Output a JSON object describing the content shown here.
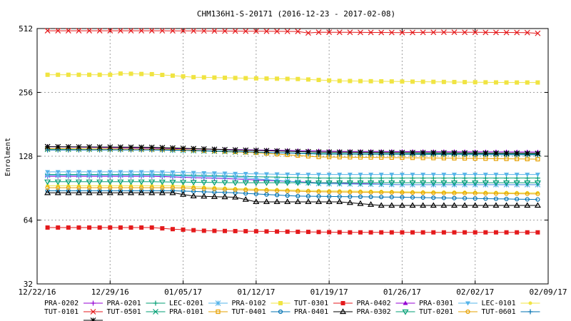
{
  "chart_data": {
    "type": "line",
    "title": "CHM136H1-S-20171 (2016-12-23 - 2017-02-08)",
    "xlabel": "",
    "ylabel": "Enrolment",
    "y_scale": "log2",
    "ylim": [
      32,
      512
    ],
    "y_ticks": [
      32,
      64,
      128,
      256,
      512
    ],
    "xlim": [
      "2016-12-22",
      "2017-02-09"
    ],
    "x_tick_labels": [
      "12/22/16",
      "12/29/16",
      "01/05/17",
      "01/12/17",
      "01/19/17",
      "01/26/17",
      "02/02/17",
      "02/09/17"
    ],
    "grid": true,
    "legend_position": "bottom",
    "start_date": "2016-12-23",
    "end_date": "2017-02-08",
    "series": [
      {
        "name": "PRA-0202",
        "color": "#9400d3",
        "marker": "plus",
        "anchors": [
          [
            0,
            103
          ],
          [
            10,
            103
          ],
          [
            18,
            100
          ],
          [
            26,
            96
          ],
          [
            34,
            94
          ],
          [
            47,
            94
          ]
        ]
      },
      {
        "name": "PRA-0201",
        "color": "#009e73",
        "marker": "plus",
        "anchors": [
          [
            0,
            105
          ],
          [
            10,
            105
          ],
          [
            18,
            103
          ],
          [
            26,
            101
          ],
          [
            34,
            101
          ],
          [
            47,
            101
          ]
        ]
      },
      {
        "name": "LEC-0201",
        "color": "#56b4e9",
        "marker": "star",
        "anchors": [
          [
            0,
            104
          ],
          [
            10,
            104
          ],
          [
            18,
            102
          ],
          [
            26,
            95
          ],
          [
            34,
            94
          ],
          [
            47,
            94
          ]
        ]
      },
      {
        "name": "PRA-0102",
        "color": "#f0e442",
        "marker": "square-filled",
        "anchors": [
          [
            0,
            310
          ],
          [
            6,
            310
          ],
          [
            7,
            314
          ],
          [
            10,
            312
          ],
          [
            14,
            302
          ],
          [
            20,
            298
          ],
          [
            24,
            296
          ],
          [
            28,
            290
          ],
          [
            34,
            288
          ],
          [
            44,
            285
          ],
          [
            47,
            285
          ]
        ]
      },
      {
        "name": "TUT-0301",
        "color": "#e41a1c",
        "marker": "square-filled",
        "anchors": [
          [
            0,
            59
          ],
          [
            10,
            59
          ],
          [
            12,
            58
          ],
          [
            15,
            57
          ],
          [
            29,
            56
          ],
          [
            44,
            56
          ],
          [
            47,
            56
          ]
        ]
      },
      {
        "name": "PRA-0402",
        "color": "#9400d3",
        "marker": "triangle-filled",
        "anchors": [
          [
            0,
            142
          ],
          [
            20,
            137
          ],
          [
            28,
            135
          ],
          [
            47,
            134
          ]
        ]
      },
      {
        "name": "PRA-0301",
        "color": "#56b4e9",
        "marker": "triangle-down-filled",
        "anchors": [
          [
            0,
            108
          ],
          [
            10,
            108
          ],
          [
            18,
            106
          ],
          [
            24,
            105
          ],
          [
            47,
            105
          ]
        ]
      },
      {
        "name": "LEC-0101",
        "color": "#f0e442",
        "marker": "circle-filled",
        "anchors": [
          [
            0,
            93
          ],
          [
            12,
            93
          ],
          [
            18,
            90
          ],
          [
            26,
            88
          ],
          [
            34,
            87
          ],
          [
            47,
            86
          ]
        ]
      },
      {
        "name": "TUT-0101",
        "color": "#e41a1c",
        "marker": "cross",
        "anchors": [
          [
            0,
            500
          ],
          [
            10,
            500
          ],
          [
            18,
            498
          ],
          [
            24,
            496
          ],
          [
            25,
            488
          ],
          [
            26,
            492
          ],
          [
            34,
            490
          ],
          [
            38,
            492
          ],
          [
            46,
            490
          ],
          [
            47,
            486
          ]
        ]
      },
      {
        "name": "TUT-0501",
        "color": "#009e73",
        "marker": "cross",
        "anchors": [
          [
            0,
            138
          ],
          [
            10,
            138
          ],
          [
            18,
            134
          ],
          [
            26,
            132
          ],
          [
            47,
            131
          ]
        ]
      },
      {
        "name": "PRA-0101",
        "color": "#e6a000",
        "marker": "square-open",
        "anchors": [
          [
            0,
            139
          ],
          [
            12,
            138
          ],
          [
            20,
            133
          ],
          [
            26,
            127
          ],
          [
            34,
            126
          ],
          [
            47,
            124
          ]
        ]
      },
      {
        "name": "TUT-0401",
        "color": "#0072b2",
        "marker": "circle-open",
        "anchors": [
          [
            0,
            88
          ],
          [
            12,
            88
          ],
          [
            18,
            86
          ],
          [
            24,
            83
          ],
          [
            34,
            82
          ],
          [
            47,
            80
          ]
        ]
      },
      {
        "name": "PRA-0401",
        "color": "#000000",
        "marker": "triangle-open",
        "anchors": [
          [
            0,
            86
          ],
          [
            12,
            86
          ],
          [
            14,
            83
          ],
          [
            18,
            82
          ],
          [
            20,
            78
          ],
          [
            28,
            78
          ],
          [
            32,
            75
          ],
          [
            47,
            75
          ]
        ]
      },
      {
        "name": "PRA-0302",
        "color": "#009e73",
        "marker": "triangle-down-open",
        "anchors": [
          [
            0,
            97
          ],
          [
            10,
            97
          ],
          [
            18,
            96
          ],
          [
            24,
            96
          ],
          [
            47,
            96
          ]
        ]
      },
      {
        "name": "TUT-0201",
        "color": "#e6a000",
        "marker": "circle-open",
        "anchors": [
          [
            0,
            91
          ],
          [
            12,
            91
          ],
          [
            18,
            89
          ],
          [
            26,
            87
          ],
          [
            47,
            85
          ]
        ]
      },
      {
        "name": "TUT-0601",
        "color": "#0072b2",
        "marker": "plus",
        "anchors": [
          [
            0,
            137
          ],
          [
            10,
            137
          ],
          [
            18,
            135
          ],
          [
            26,
            131
          ],
          [
            47,
            130
          ]
        ]
      },
      {
        "name": "",
        "color": "#000000",
        "marker": "star",
        "anchors": [
          [
            0,
            142
          ],
          [
            10,
            141
          ],
          [
            18,
            137
          ],
          [
            26,
            134
          ],
          [
            47,
            132
          ]
        ]
      }
    ]
  }
}
